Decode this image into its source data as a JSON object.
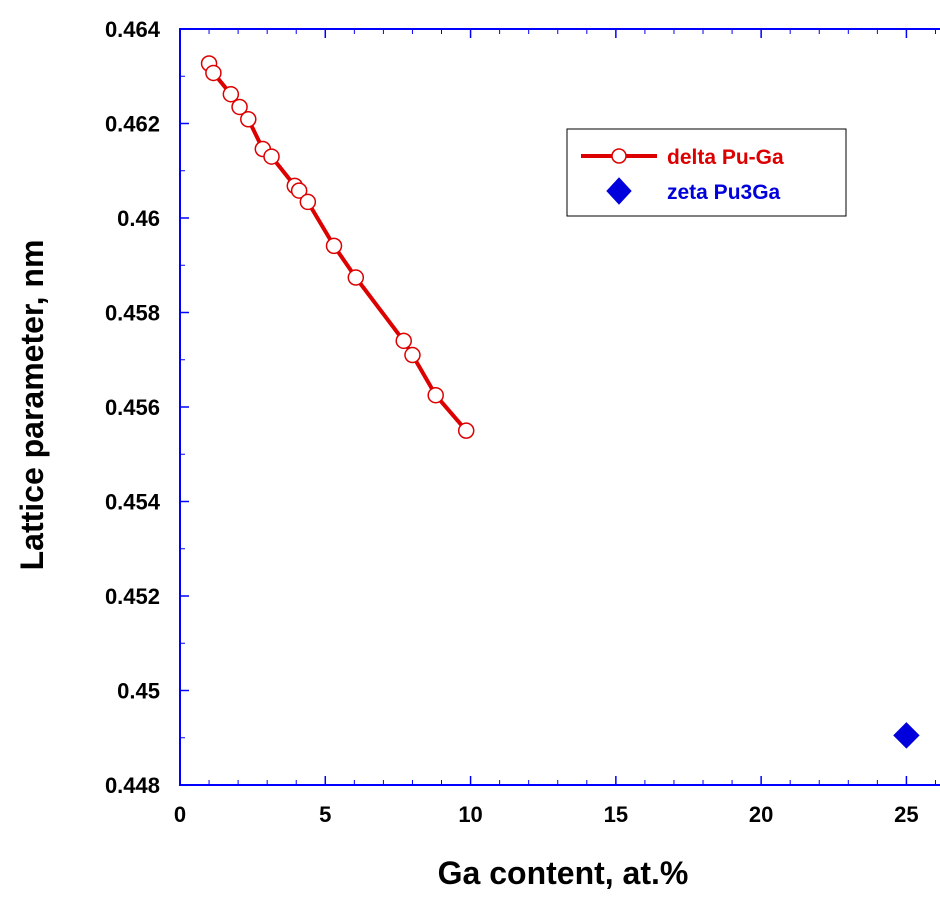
{
  "chart_data": {
    "type": "scatter",
    "title": "",
    "xlabel": "Ga content, at.%",
    "ylabel": "Lattice parameter, nm",
    "xlim": [
      0,
      26.5
    ],
    "ylim": [
      0.448,
      0.464
    ],
    "xticks": [
      0,
      5,
      10,
      15,
      20,
      25
    ],
    "xtick_labels": [
      "0",
      "5",
      "10",
      "15",
      "20",
      "25"
    ],
    "yticks": [
      0.448,
      0.45,
      0.452,
      0.454,
      0.456,
      0.458,
      0.46,
      0.462,
      0.464
    ],
    "ytick_labels": [
      "0.448",
      "0.45",
      "0.452",
      "0.454",
      "0.456",
      "0.458",
      "0.46",
      "0.462",
      "0.464"
    ],
    "grid": false,
    "legend_position": "top-right",
    "series": [
      {
        "name": "delta Pu-Ga",
        "color": "#dd0000",
        "marker": "open-circle",
        "line": true,
        "x": [
          1.0,
          1.15,
          1.75,
          2.05,
          2.35,
          2.85,
          3.15,
          3.95,
          4.1,
          4.4,
          5.3,
          6.05,
          7.7,
          8.0,
          8.8,
          9.85
        ],
        "y": [
          0.46327,
          0.46307,
          0.46262,
          0.46235,
          0.46209,
          0.46146,
          0.4613,
          0.46068,
          0.46058,
          0.46034,
          0.45941,
          0.45874,
          0.4574,
          0.4571,
          0.45625,
          0.4555
        ]
      },
      {
        "name": "zeta Pu3Ga",
        "color": "#0000dd",
        "marker": "filled-diamond",
        "line": false,
        "x": [
          25.0
        ],
        "y": [
          0.44905
        ]
      }
    ]
  }
}
